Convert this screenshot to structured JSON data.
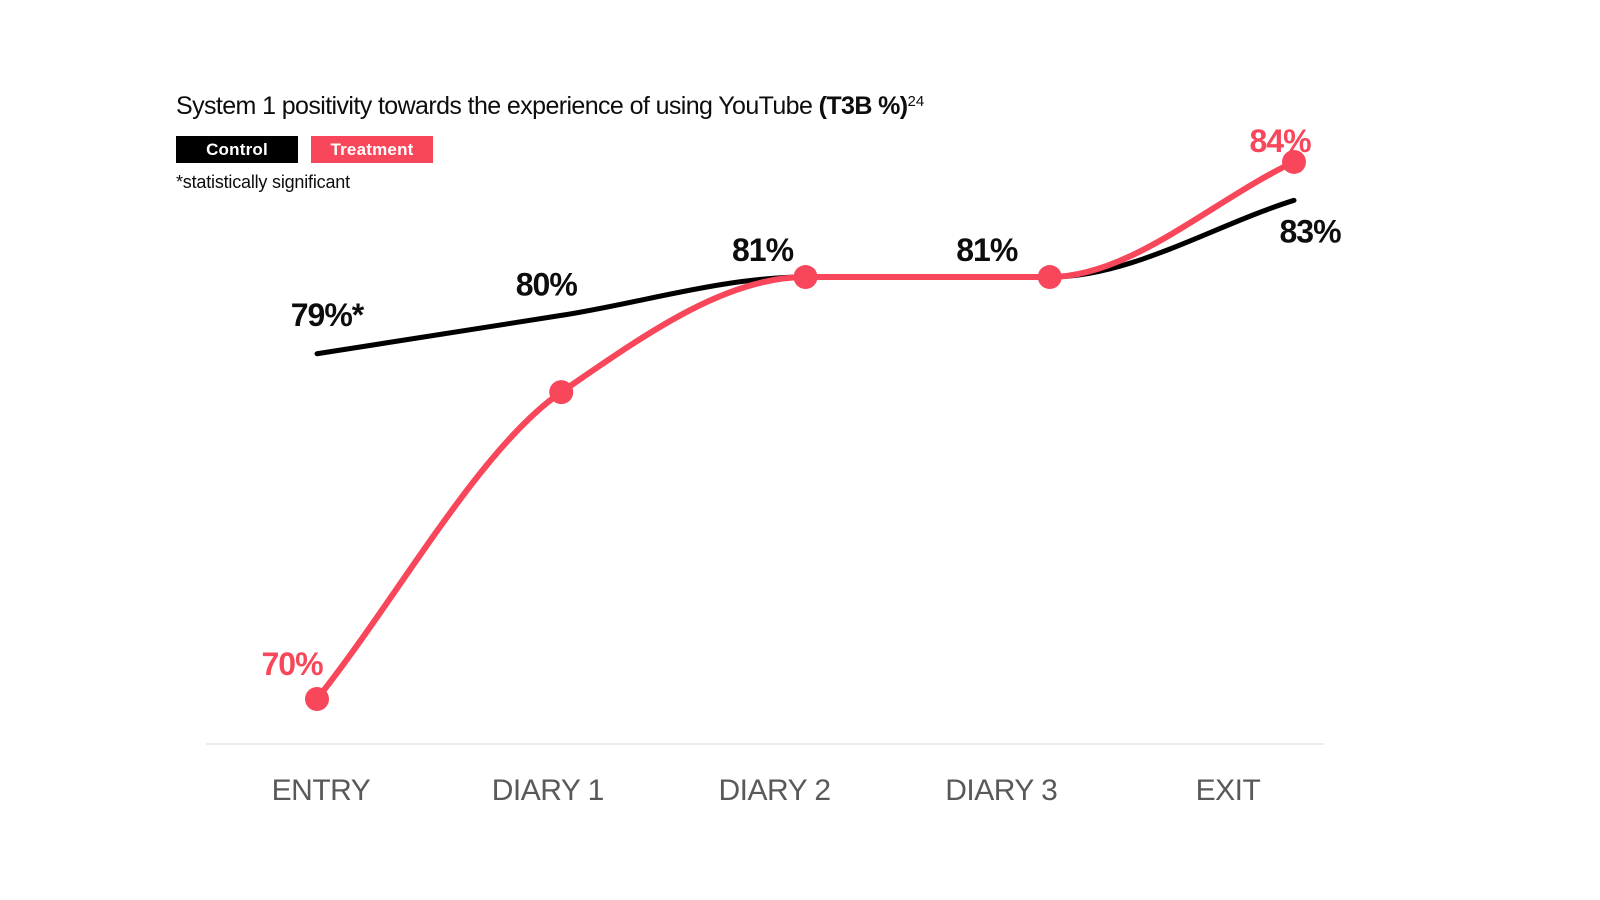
{
  "title": {
    "regular": "System 1 positivity towards the experience of using YouTube ",
    "bold": "(T3B %)",
    "superscript": "24"
  },
  "legend": [
    {
      "label": "Control",
      "color": "#000000"
    },
    {
      "label": "Treatment",
      "color": "#f8475a"
    }
  ],
  "footnote": "*statistically significant",
  "colors": {
    "background": "#ffffff",
    "control": "#000000",
    "treatment": "#f8475a",
    "axis_line": "#ececec",
    "axis_label": "#58595b",
    "label_black": "#0d0d0d"
  },
  "chart_data": {
    "type": "line",
    "categories": [
      "ENTRY",
      "DIARY 1",
      "DIARY 2",
      "DIARY 3",
      "EXIT"
    ],
    "series": [
      {
        "name": "Control",
        "color": "#000000",
        "values": [
          79,
          80,
          81,
          81,
          83
        ],
        "point_labels": [
          "79%*",
          "80%",
          "81%",
          "81%",
          "83%"
        ],
        "show_markers": false
      },
      {
        "name": "Treatment",
        "color": "#f8475a",
        "values": [
          70,
          78,
          81,
          81,
          84
        ],
        "point_labels": [
          "70%",
          "",
          "",
          "",
          "84%"
        ],
        "show_markers": true
      }
    ],
    "ylim": [
      68.8,
      85
    ],
    "grid": false,
    "legend_position": "top-left",
    "xlabel": "",
    "ylabel": ""
  }
}
